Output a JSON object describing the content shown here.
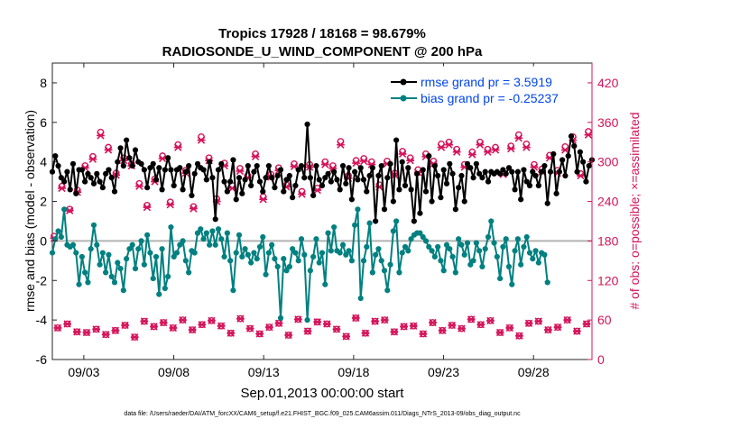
{
  "chart_data": {
    "type": "line",
    "title_line1": "Tropics 17928 / 18168 = 98.679%",
    "title_line2": "RADIOSONDE_U_WIND_COMPONENT @ 200 hPa",
    "ylabel_left": "rmse and bias (model - observation)",
    "ylabel_right": "# of obs: o=possible; ×=assimilated",
    "xlabel": "Sep.01,2013 00:00:00 start",
    "footnote": "data file: /Users/raeder/DAI/ATM_forcXX/CAM6_setup/f.e21.FHIST_BGC.f09_025.CAM6assim.011/Diags_NTrS_2013-09/obs_diag_output.nc",
    "x_range_days": [
      1.25,
      31.25
    ],
    "ylim_left": [
      -6,
      9
    ],
    "ylim_right": [
      0,
      450
    ],
    "left_ticks": [
      "8",
      "6",
      "4",
      "2",
      "0",
      "-2",
      "-4",
      "-6"
    ],
    "left_tick_values": [
      8,
      6,
      4,
      2,
      0,
      -2,
      -4,
      -6
    ],
    "right_ticks": [
      "420",
      "360",
      "300",
      "240",
      "180",
      "120",
      "60",
      "0"
    ],
    "right_tick_values": [
      420,
      360,
      300,
      240,
      180,
      120,
      60,
      0
    ],
    "x_ticks": [
      "09/03",
      "09/08",
      "09/13",
      "09/18",
      "09/23",
      "09/28"
    ],
    "x_tick_days": [
      3,
      8,
      13,
      18,
      23,
      28
    ],
    "series": [
      {
        "name": "rmse grand pr = 3.5919",
        "color": "#000000",
        "axis": "left",
        "values": [
          3.5,
          4.3,
          3.8,
          3.2,
          3.0,
          3.5,
          2.6,
          3.9,
          2.4,
          3.6,
          3.6,
          3.0,
          3.4,
          3.2,
          2.9,
          3.4,
          3.0,
          2.7,
          3.4,
          3.6,
          3.2,
          2.5,
          4.0,
          4.7,
          3.8,
          5.1,
          4.2,
          3.8,
          4.6,
          4.0,
          3.9,
          3.6,
          2.7,
          3.7,
          3.9,
          3.1,
          3.7,
          2.6,
          3.6,
          4.2,
          3.6,
          2.8,
          3.6,
          3.7,
          2.6,
          3.5,
          3.8,
          2.3,
          3.4,
          3.9,
          3.7,
          3.6,
          3.1,
          4.0,
          3.2,
          1.1,
          3.6,
          3.9,
          3.0,
          2.5,
          3.0,
          4.1,
          2.1,
          3.2,
          2.4,
          3.1,
          3.8,
          2.8,
          3.5,
          3.8,
          3.0,
          2.5,
          3.2,
          3.8,
          3.2,
          2.7,
          3.3,
          3.6,
          2.5,
          3.1,
          3.3,
          2.2,
          2.8,
          3.6,
          3.8,
          3.2,
          5.9,
          3.2,
          2.3,
          3.8,
          3.1,
          2.8,
          3.2,
          3.4,
          3.0,
          3.5,
          3.1,
          2.6,
          3.8,
          2.9,
          3.7,
          2.1,
          3.5,
          3.1,
          3.7,
          3.1,
          2.5,
          3.3,
          3.7,
          1.0,
          3.3,
          3.8,
          1.6,
          3.2,
          3.9,
          2.0,
          5.1,
          2.6,
          4.0,
          2.8,
          3.7,
          2.6,
          1.0,
          3.4,
          1.4,
          3.6,
          2.5,
          4.3,
          2.0,
          3.8,
          3.3,
          2.2,
          3.6,
          2.9,
          3.9,
          3.4,
          1.6,
          2.7,
          3.3,
          2.0,
          3.9,
          3.7,
          3.2,
          3.9,
          3.4,
          3.2,
          3.5,
          3.0,
          3.5,
          3.4,
          3.5,
          3.4,
          3.6,
          3.4,
          3.7,
          3.5,
          2.6,
          3.5,
          2.1,
          3.6,
          3.0,
          2.8,
          3.5,
          3.3,
          2.8,
          3.5,
          3.8,
          1.9,
          3.5,
          4.4,
          2.4,
          3.5,
          4.1,
          3.3,
          4.3,
          5.3,
          4.8,
          3.5,
          4.5,
          4.0,
          3.0,
          3.8,
          4.1
        ]
      },
      {
        "name": "bias grand pr = -0.25237",
        "color": "#008080",
        "axis": "left",
        "values": [
          -0.6,
          0.1,
          0.5,
          0.2,
          1.6,
          -0.2,
          -0.3,
          -0.2,
          -0.6,
          -2.2,
          -0.8,
          -1.6,
          -2.1,
          -0.4,
          0.8,
          -0.2,
          -1.2,
          -0.6,
          -1.6,
          -0.7,
          -1.8,
          -2.1,
          -1.1,
          -1.4,
          -2.5,
          -0.9,
          -0.4,
          -0.2,
          -1.4,
          -0.4,
          0.0,
          -1.2,
          0.3,
          -0.6,
          -1.9,
          -0.8,
          -2.7,
          -0.4,
          -2.4,
          -1.8,
          0.7,
          -0.8,
          -0.6,
          -0.2,
          0.0,
          -1.0,
          -1.6,
          -0.5,
          -0.6,
          0.4,
          0.6,
          0.1,
          0.4,
          -0.2,
          0.5,
          -0.2,
          0.6,
          0.1,
          -0.8,
          0.4,
          -1.0,
          -2.5,
          -0.6,
          0.3,
          -0.8,
          -0.4,
          -0.7,
          -1.1,
          -0.6,
          -0.9,
          -0.3,
          0.2,
          -1.7,
          -0.6,
          -0.2,
          -0.9,
          -1.3,
          -3.9,
          -0.9,
          -1.5,
          -1.3,
          -0.4,
          -0.6,
          -1.0,
          0.1,
          -0.7,
          -4.0,
          -1.5,
          -0.8,
          0.1,
          -1.1,
          -0.6,
          -2.2,
          0.4,
          -0.5,
          0.7,
          -0.5,
          -0.6,
          -0.2,
          -0.7,
          -0.5,
          -1.0,
          0.8,
          1.6,
          -2.9,
          -1.0,
          -0.3,
          0.9,
          -1.6,
          -0.7,
          -0.4,
          -1.0,
          -1.5,
          -2.5,
          -1.2,
          0.5,
          1.0,
          -1.6,
          -0.6,
          -0.3,
          -0.5,
          0.1,
          0.3,
          0.4,
          0.4,
          0.2,
          0.0,
          -0.3,
          -0.5,
          -0.8,
          -0.3,
          -1.0,
          -1.5,
          -0.2,
          -0.4,
          -0.8,
          -1.6,
          0.1,
          -0.2,
          -0.7,
          -0.1,
          -1.2,
          -1.0,
          -0.1,
          -0.5,
          -1.3,
          -0.4,
          0.2,
          1.0,
          -0.1,
          -0.8,
          -1.9,
          -0.3,
          0.1,
          -1.3,
          -2.2,
          -0.5,
          0.1,
          -1.2,
          -0.3,
          0.2,
          -0.6,
          -0.9,
          -0.5,
          -1.1,
          -0.6,
          -0.7,
          -2.1
        ]
      },
      {
        "name": "# obs possible",
        "color": "#d4145a",
        "axis": "right",
        "marker": "circle",
        "values": [
          48,
          54,
          42,
          41,
          46,
          38,
          44,
          52,
          34,
          58,
          50,
          56,
          48,
          60,
          45,
          53,
          59,
          51,
          40,
          62,
          47,
          39,
          49,
          55,
          37,
          61,
          43,
          57,
          54,
          46,
          35,
          63,
          40,
          58,
          60,
          42,
          50,
          51,
          39,
          56,
          44,
          52,
          47,
          61,
          53,
          59,
          41,
          48,
          36,
          55,
          58,
          45,
          49,
          60,
          43,
          54
        ]
      },
      {
        "name": "# obs assimilated",
        "color": "#d4145a",
        "axis": "right",
        "marker": "x",
        "values": [
          48,
          54,
          42,
          41,
          46,
          38,
          44,
          52,
          34,
          58,
          50,
          56,
          48,
          60,
          45,
          53,
          59,
          51,
          40,
          62,
          47,
          39,
          49,
          55,
          37,
          61,
          43,
          57,
          54,
          46,
          35,
          63,
          40,
          58,
          60,
          42,
          50,
          51,
          39,
          56,
          44,
          52,
          47,
          61,
          53,
          59,
          41,
          48,
          36,
          55,
          58,
          45,
          49,
          60,
          43,
          54
        ]
      }
    ],
    "obs_upper_possible": [
      187,
      263,
      228,
      257,
      294,
      308,
      345,
      322,
      283,
      306,
      297,
      267,
      234,
      274,
      309,
      239,
      326,
      287,
      232,
      338,
      306,
      244,
      298,
      264,
      290,
      279,
      312,
      247,
      281,
      291,
      265,
      297,
      255,
      296,
      260,
      300,
      294,
      331,
      279,
      302,
      305,
      300,
      265,
      301,
      283,
      316,
      306,
      288,
      312,
      301,
      327,
      330,
      319,
      296,
      315,
      330,
      319,
      322,
      284,
      324,
      341,
      327,
      296,
      289,
      310,
      287,
      323,
      338,
      282,
      346
    ],
    "obs_upper_assimilated": [
      184,
      260,
      226,
      254,
      291,
      304,
      340,
      318,
      280,
      302,
      294,
      263,
      231,
      270,
      305,
      235,
      322,
      283,
      229,
      333,
      302,
      240,
      294,
      260,
      286,
      276,
      308,
      243,
      277,
      287,
      262,
      293,
      251,
      292,
      257,
      296,
      290,
      326,
      275,
      298,
      301,
      296,
      262,
      297,
      280,
      312,
      302,
      284,
      308,
      297,
      322,
      326,
      315,
      292,
      311,
      326,
      315,
      318,
      281,
      320,
      336,
      322,
      292,
      285,
      306,
      283,
      318,
      333,
      279,
      341
    ]
  }
}
